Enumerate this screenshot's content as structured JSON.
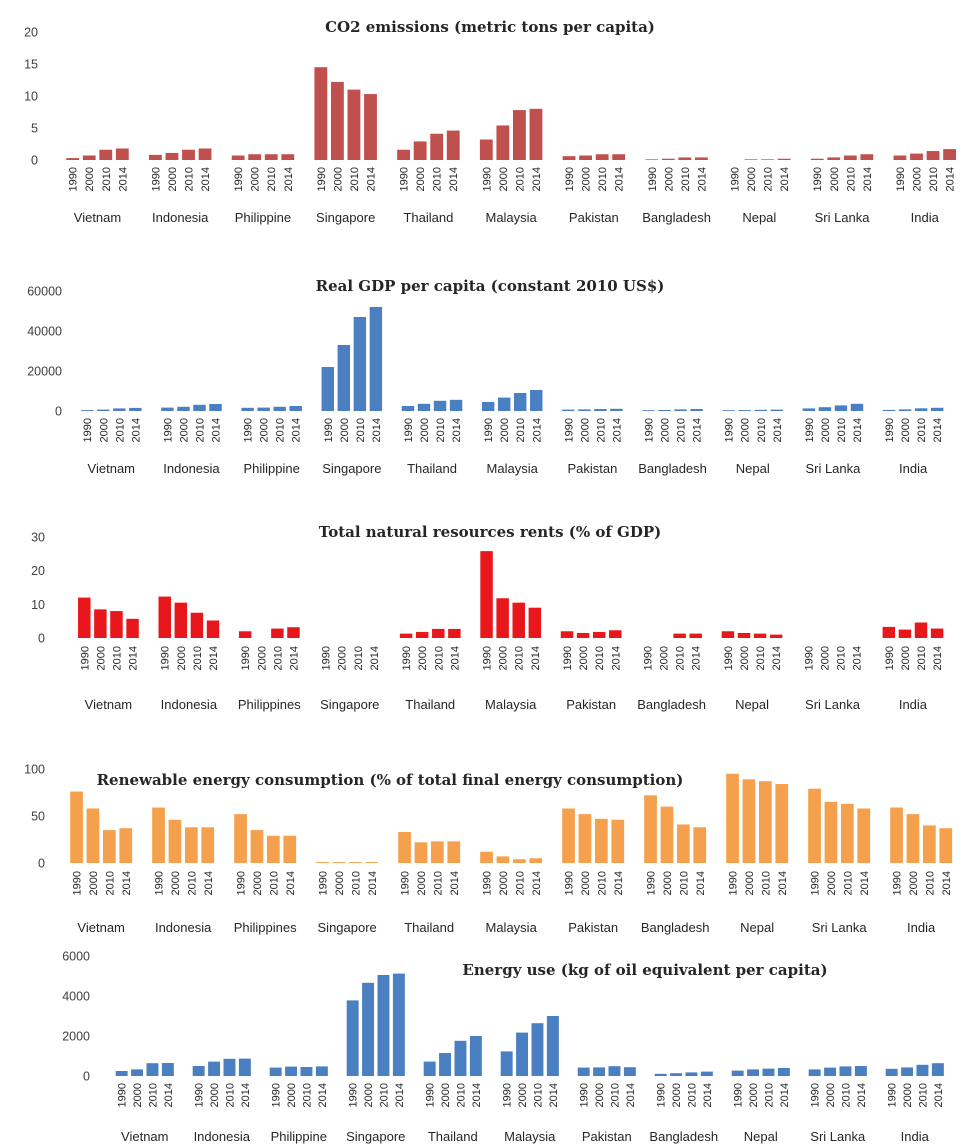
{
  "chart_data": [
    {
      "type": "bar",
      "title": "CO2 emissions (metric tons per capita)",
      "color": "#c0504d",
      "ylim": [
        0,
        20
      ],
      "yticks": [
        0,
        5,
        10,
        15,
        20
      ],
      "years": [
        "1990",
        "2000",
        "2010",
        "2014"
      ],
      "categories": [
        "Vietnam",
        "Indonesia",
        "Philippine",
        "Singapore",
        "Thailand",
        "Malaysia",
        "Pakistan",
        "Bangladesh",
        "Nepal",
        "Sri Lanka",
        "India"
      ],
      "values": [
        [
          0.3,
          0.7,
          1.6,
          1.8
        ],
        [
          0.8,
          1.1,
          1.6,
          1.8
        ],
        [
          0.7,
          0.9,
          0.9,
          0.9
        ],
        [
          14.5,
          12.2,
          11.0,
          10.3
        ],
        [
          1.6,
          2.9,
          4.1,
          4.6
        ],
        [
          3.2,
          5.4,
          7.8,
          8.0
        ],
        [
          0.6,
          0.7,
          0.9,
          0.9
        ],
        [
          0.1,
          0.2,
          0.4,
          0.4
        ],
        [
          0.0,
          0.1,
          0.1,
          0.2
        ],
        [
          0.2,
          0.4,
          0.7,
          0.9
        ],
        [
          0.7,
          1.0,
          1.4,
          1.7
        ]
      ]
    },
    {
      "type": "bar",
      "title": "Real GDP per capita (constant 2010 US$)",
      "color": "#4a7fc1",
      "ylim": [
        0,
        60000
      ],
      "yticks": [
        0,
        20000,
        40000,
        60000
      ],
      "years": [
        "1990",
        "2000",
        "2010",
        "2014"
      ],
      "categories": [
        "Vietnam",
        "Indonesia",
        "Philippine",
        "Singapore",
        "Thailand",
        "Malaysia",
        "Pakistan",
        "Bangladesh",
        "Nepal",
        "Sri Lanka",
        "India"
      ],
      "values": [
        [
          450,
          700,
          1300,
          1550
        ],
        [
          1700,
          2100,
          3100,
          3500
        ],
        [
          1600,
          1700,
          2100,
          2500
        ],
        [
          22000,
          33000,
          47000,
          52000
        ],
        [
          2500,
          3600,
          5100,
          5600
        ],
        [
          4500,
          6700,
          9000,
          10500
        ],
        [
          700,
          800,
          1000,
          1100
        ],
        [
          400,
          500,
          800,
          1000
        ],
        [
          400,
          450,
          600,
          700
        ],
        [
          1300,
          1900,
          2800,
          3600
        ],
        [
          550,
          800,
          1350,
          1600
        ]
      ]
    },
    {
      "type": "bar",
      "title": "Total natural resources rents (% of GDP)",
      "color": "#e8171c",
      "ylim": [
        0,
        30
      ],
      "yticks": [
        0,
        10,
        20,
        30
      ],
      "years": [
        "1990",
        "2000",
        "2010",
        "2014"
      ],
      "categories": [
        "Vietnam",
        "Indonesia",
        "Philippines",
        "Singapore",
        "Thailand",
        "Malaysia",
        "Pakistan",
        "Bangladesh",
        "Nepal",
        "Sri Lanka",
        "India"
      ],
      "values": [
        [
          12,
          8.5,
          8,
          5.7
        ],
        [
          12.3,
          10.5,
          7.5,
          5.2
        ],
        [
          2,
          0,
          2.8,
          3.2
        ],
        [
          0,
          0,
          0,
          0
        ],
        [
          1.3,
          1.8,
          2.7,
          2.7
        ],
        [
          25.8,
          11.8,
          10.5,
          9
        ],
        [
          2,
          1.5,
          1.8,
          2.3
        ],
        [
          0,
          0,
          1.3,
          1.3
        ],
        [
          2,
          1.5,
          1.3,
          1
        ],
        [
          0,
          0,
          0,
          0
        ],
        [
          3.3,
          2.5,
          4.6,
          2.8
        ]
      ]
    },
    {
      "type": "bar",
      "title": "Renewable energy consumption (% of total final energy consumption)",
      "color": "#f5a04d",
      "ylim": [
        0,
        100
      ],
      "yticks": [
        0,
        50,
        100
      ],
      "years": [
        "1990",
        "2000",
        "2010",
        "2014"
      ],
      "categories": [
        "Vietnam",
        "Indonesia",
        "Philippines",
        "Singapore",
        "Thailand",
        "Malaysia",
        "Pakistan",
        "Bangladesh",
        "Nepal",
        "Sri Lanka",
        "India"
      ],
      "values": [
        [
          76,
          58,
          35,
          37
        ],
        [
          59,
          46,
          38,
          38
        ],
        [
          52,
          35,
          29,
          29
        ],
        [
          1,
          1,
          1,
          1
        ],
        [
          33,
          22,
          23,
          23
        ],
        [
          12,
          7,
          4,
          5
        ],
        [
          58,
          52,
          47,
          46
        ],
        [
          72,
          60,
          41,
          38
        ],
        [
          95,
          89,
          87,
          84
        ],
        [
          79,
          65,
          63,
          58
        ],
        [
          59,
          52,
          40,
          37
        ]
      ]
    },
    {
      "type": "bar",
      "title": "Energy use (kg of oil equivalent per capita)",
      "color": "#4a7fc1",
      "ylim": [
        0,
        6000
      ],
      "yticks": [
        0,
        2000,
        4000,
        6000
      ],
      "years": [
        "1990",
        "2000",
        "2010",
        "2014"
      ],
      "categories": [
        "Vietnam",
        "Indonesia",
        "Philippine",
        "Singapore",
        "Thailand",
        "Malaysia",
        "Pakistan",
        "Bangladesh",
        "Nepal",
        "Sri Lanka",
        "India"
      ],
      "values": [
        [
          250,
          330,
          640,
          650
        ],
        [
          500,
          720,
          860,
          870
        ],
        [
          420,
          470,
          450,
          480
        ],
        [
          3780,
          4660,
          5050,
          5120
        ],
        [
          720,
          1150,
          1760,
          2000
        ],
        [
          1230,
          2170,
          2640,
          3000
        ],
        [
          420,
          430,
          490,
          440
        ],
        [
          110,
          140,
          180,
          220
        ],
        [
          270,
          330,
          370,
          400
        ],
        [
          330,
          420,
          480,
          500
        ],
        [
          360,
          430,
          560,
          640
        ]
      ]
    }
  ]
}
